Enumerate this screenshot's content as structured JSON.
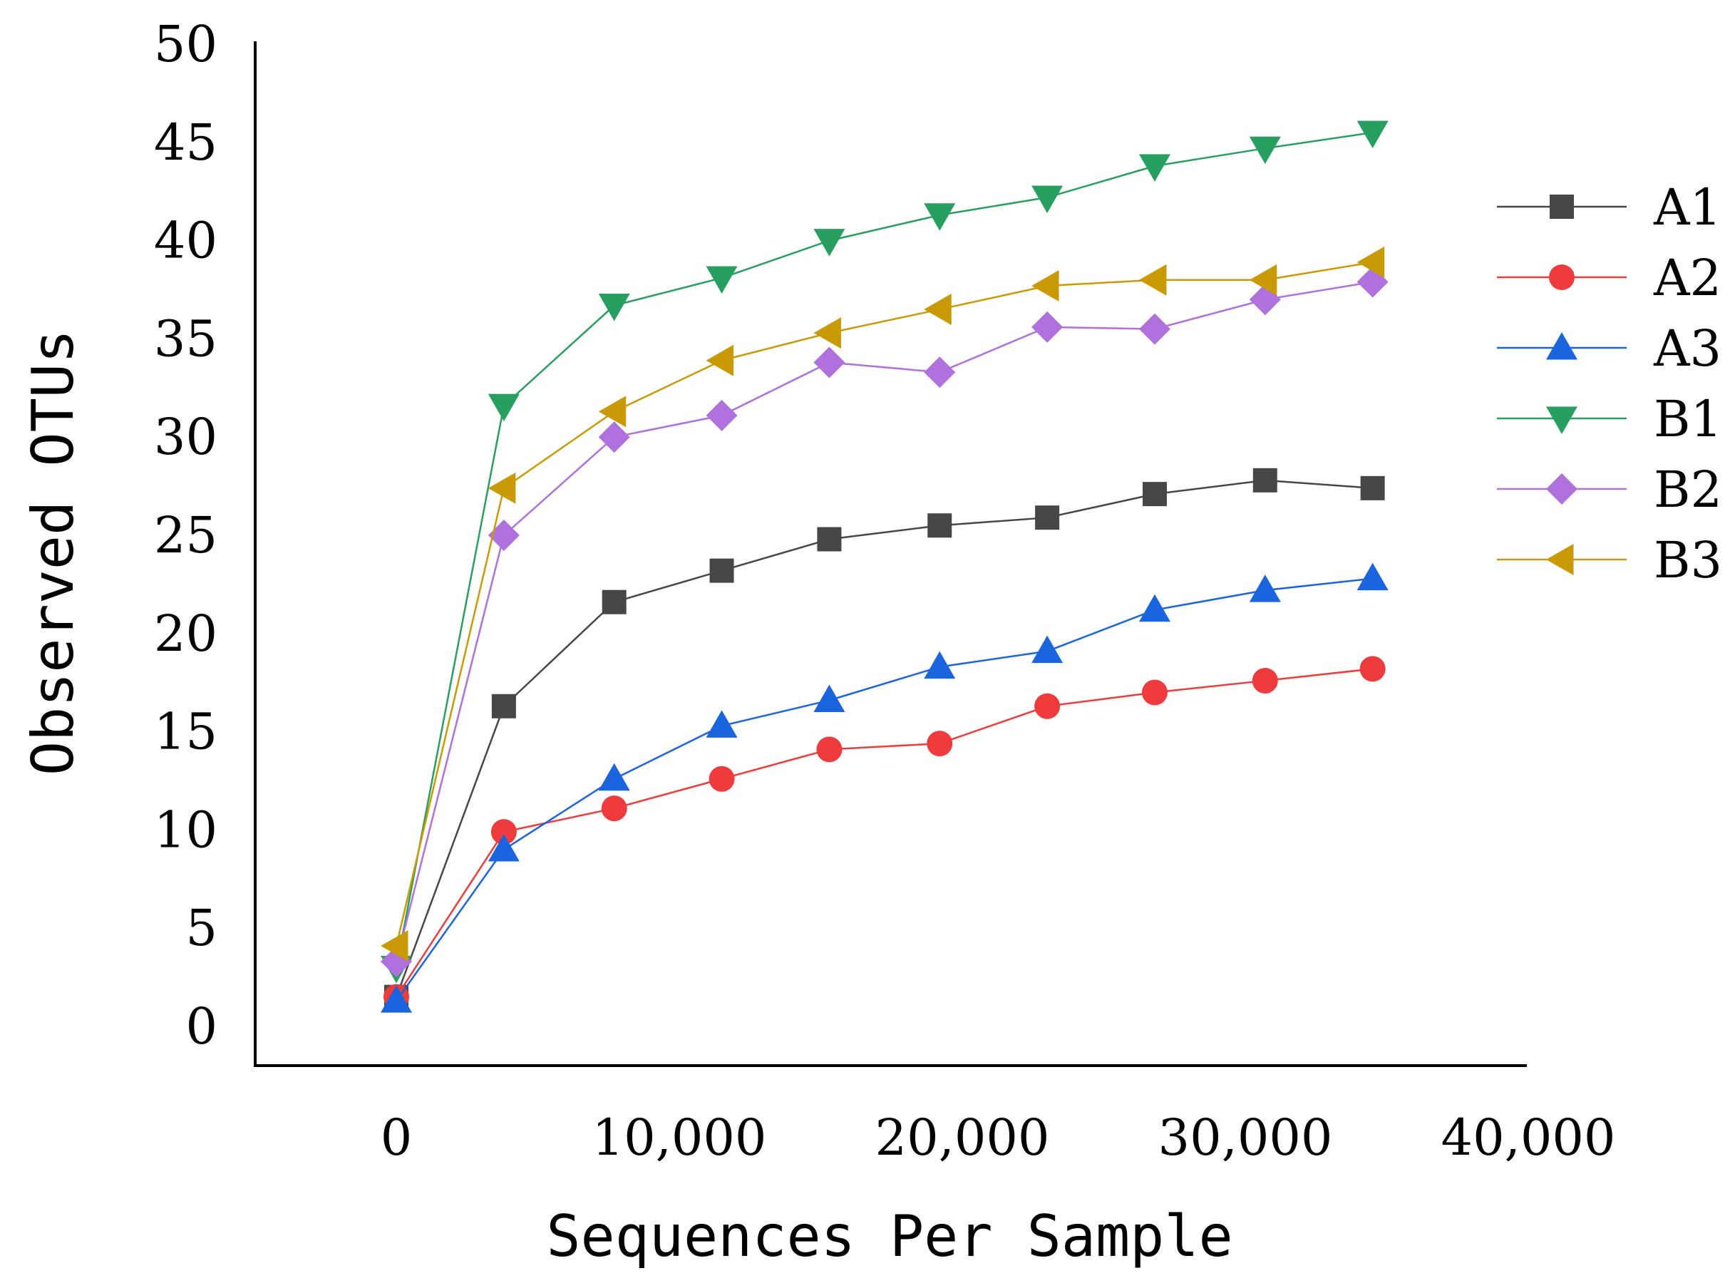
{
  "chart_data": {
    "type": "line",
    "title": "",
    "xlabel": "Sequences Per Sample",
    "ylabel": "Observed OTUs",
    "xlim": [
      -5000,
      40000
    ],
    "ylim": [
      -2,
      50
    ],
    "x_ticks": [
      0,
      10000,
      20000,
      30000,
      40000
    ],
    "x_tick_labels": [
      "0",
      "10,000",
      "20,000",
      "30,000",
      "40,000"
    ],
    "y_ticks": [
      0,
      5,
      10,
      15,
      20,
      25,
      30,
      35,
      40,
      45,
      50
    ],
    "y_tick_labels": [
      "0",
      "5",
      "10",
      "15",
      "20",
      "25",
      "30",
      "35",
      "40",
      "45",
      "50"
    ],
    "grid": false,
    "legend_position": "right",
    "x": [
      0,
      3800,
      7700,
      11500,
      15300,
      19200,
      23000,
      26800,
      30700,
      34500
    ],
    "series": [
      {
        "name": "A1",
        "color": "#474747",
        "marker": "square",
        "values": [
          1.5,
          16.3,
          21.6,
          23.2,
          24.8,
          25.5,
          25.9,
          27.1,
          27.8,
          27.4
        ]
      },
      {
        "name": "A2",
        "color": "#ef3b3b",
        "marker": "circle",
        "values": [
          1.5,
          9.9,
          11.1,
          12.6,
          14.1,
          14.4,
          16.3,
          17.0,
          17.6,
          18.2
        ]
      },
      {
        "name": "A3",
        "color": "#1a64e0",
        "marker": "triangle-up",
        "values": [
          1.3,
          9.0,
          12.6,
          15.3,
          16.6,
          18.3,
          19.1,
          21.2,
          22.2,
          22.8
        ]
      },
      {
        "name": "B1",
        "color": "#27a05f",
        "marker": "triangle-down",
        "values": [
          3.0,
          31.6,
          36.7,
          38.1,
          40.0,
          41.3,
          42.2,
          43.8,
          44.7,
          45.5
        ]
      },
      {
        "name": "B2",
        "color": "#b070dd",
        "marker": "diamond",
        "values": [
          3.3,
          25.0,
          30.0,
          31.1,
          33.8,
          33.3,
          35.6,
          35.5,
          37.0,
          37.9
        ]
      },
      {
        "name": "B3",
        "color": "#c99a06",
        "marker": "triangle-left",
        "values": [
          4.1,
          27.4,
          31.3,
          33.9,
          35.3,
          36.5,
          37.7,
          38.0,
          38.0,
          38.9
        ]
      }
    ]
  }
}
